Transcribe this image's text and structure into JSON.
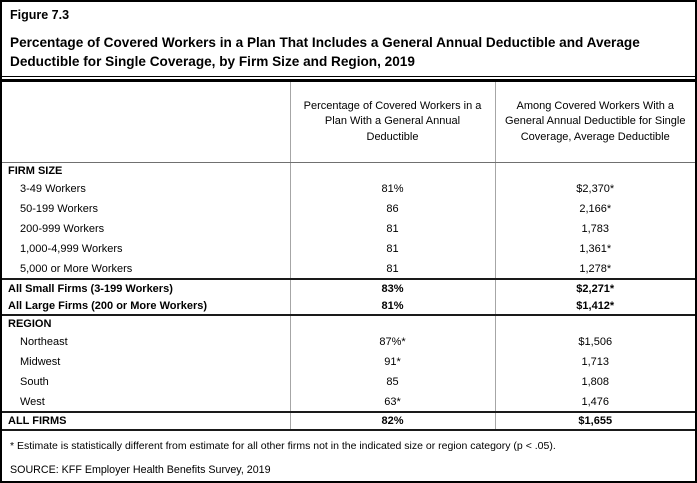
{
  "figure": {
    "label": "Figure 7.3",
    "title": "Percentage of Covered Workers in a Plan That Includes a General Annual Deductible and Average Deductible for Single Coverage, by Firm Size and Region, 2019"
  },
  "table": {
    "columns": [
      "",
      "Percentage of Covered Workers in a Plan With a General Annual Deductible",
      "Among Covered Workers With a General Annual Deductible for Single Coverage, Average Deductible"
    ],
    "rows": [
      {
        "label": "FIRM SIZE",
        "pct": "",
        "avg": "",
        "type": "section",
        "sep": false
      },
      {
        "label": "3-49 Workers",
        "pct": "81%",
        "avg": "$2,370*",
        "type": "item",
        "sep": false
      },
      {
        "label": "50-199 Workers",
        "pct": "86",
        "avg": "2,166*",
        "type": "item",
        "sep": false
      },
      {
        "label": "200-999 Workers",
        "pct": "81",
        "avg": "1,783",
        "type": "item",
        "sep": false
      },
      {
        "label": "1,000-4,999 Workers",
        "pct": "81",
        "avg": "1,361*",
        "type": "item",
        "sep": false
      },
      {
        "label": "5,000 or More Workers",
        "pct": "81",
        "avg": "1,278*",
        "type": "item",
        "sep": false
      },
      {
        "label": "All Small Firms (3-199 Workers)",
        "pct": "83%",
        "avg": "$2,271*",
        "type": "summary",
        "sep": true
      },
      {
        "label": "All Large Firms (200 or More Workers)",
        "pct": "81%",
        "avg": "$1,412*",
        "type": "summary",
        "sep": false
      },
      {
        "label": "REGION",
        "pct": "",
        "avg": "",
        "type": "section",
        "sep": true
      },
      {
        "label": "Northeast",
        "pct": "87%*",
        "avg": "$1,506",
        "type": "item",
        "sep": false
      },
      {
        "label": "Midwest",
        "pct": "91*",
        "avg": "1,713",
        "type": "item",
        "sep": false
      },
      {
        "label": "South",
        "pct": "85",
        "avg": "1,808",
        "type": "item",
        "sep": false
      },
      {
        "label": "West",
        "pct": "63*",
        "avg": "1,476",
        "type": "item",
        "sep": false
      },
      {
        "label": "ALL FIRMS",
        "pct": "82%",
        "avg": "$1,655",
        "type": "total",
        "sep": true
      }
    ]
  },
  "footnote": "* Estimate is statistically different from estimate for all other firms not in the indicated size or region category (p < .05).",
  "source": "SOURCE: KFF Employer Health Benefits Survey, 2019",
  "chart_data": {
    "type": "table",
    "title": "Percentage of Covered Workers in a Plan That Includes a General Annual Deductible and Average Deductible for Single Coverage, by Firm Size and Region, 2019",
    "columns": [
      "Category",
      "Percentage of Covered Workers in a Plan With a General Annual Deductible",
      "Among Covered Workers With a General Annual Deductible for Single Coverage, Average Deductible"
    ],
    "rows": [
      [
        "FIRM SIZE",
        null,
        null
      ],
      [
        "3-49 Workers",
        "81%",
        "$2,370*"
      ],
      [
        "50-199 Workers",
        "86",
        "2,166*"
      ],
      [
        "200-999 Workers",
        "81",
        "1,783"
      ],
      [
        "1,000-4,999 Workers",
        "81",
        "1,361*"
      ],
      [
        "5,000 or More Workers",
        "81",
        "1,278*"
      ],
      [
        "All Small Firms (3-199 Workers)",
        "83%",
        "$2,271*"
      ],
      [
        "All Large Firms (200 or More Workers)",
        "81%",
        "$1,412*"
      ],
      [
        "REGION",
        null,
        null
      ],
      [
        "Northeast",
        "87%*",
        "$1,506"
      ],
      [
        "Midwest",
        "91*",
        "1,713"
      ],
      [
        "South",
        "85",
        "1,808"
      ],
      [
        "West",
        "63*",
        "1,476"
      ],
      [
        "ALL FIRMS",
        "82%",
        "$1,655"
      ]
    ]
  }
}
